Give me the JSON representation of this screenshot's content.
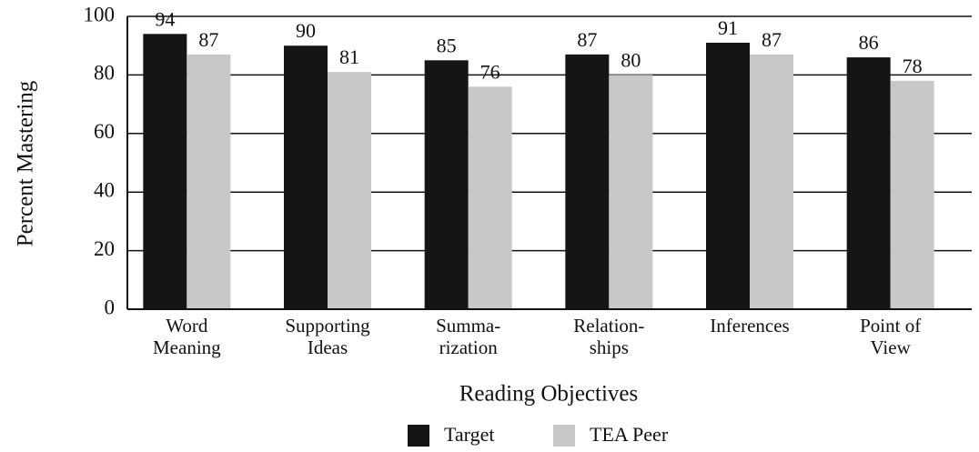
{
  "chart_data": {
    "type": "bar",
    "x_label": "Reading Objectives",
    "y_label": "Percent Mastering",
    "categories": [
      "Word\nMeaning",
      "Supporting\nIdeas",
      "Summa-\nrization",
      "Relation-\nships",
      "Inferences",
      "Point of\nView"
    ],
    "series": [
      {
        "name": "Target",
        "color": "#151515",
        "values": [
          94,
          90,
          85,
          87,
          91,
          86
        ]
      },
      {
        "name": "TEA Peer",
        "color": "#c8c8c8",
        "values": [
          87,
          81,
          76,
          80,
          87,
          78
        ]
      }
    ],
    "ylim": [
      0,
      100
    ],
    "yticks": [
      0,
      20,
      40,
      60,
      80,
      100
    ],
    "grid": true,
    "legend": "bottom"
  }
}
